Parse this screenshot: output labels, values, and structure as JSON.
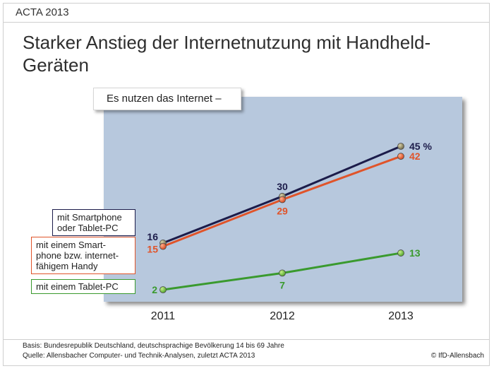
{
  "header": {
    "label": "ACTA 2013"
  },
  "footer": {
    "basis": "Basis: Bundesrepublik Deutschland, deutschsprachige Bevölkerung 14 bis 69 Jahre",
    "source": "Quelle: Allensbacher Computer- und Technik-Analysen, zuletzt ACTA 2013",
    "copyright": "© IfD-Allensbach"
  },
  "chart_data": {
    "type": "line",
    "title": "Starker Anstieg der Internetnutzung mit Handheld-Geräten",
    "subtitle": "Es nutzen das Internet –",
    "x": [
      "2011",
      "2012",
      "2013"
    ],
    "unit": "%",
    "ylim": [
      0,
      50
    ],
    "grid": false,
    "background_color": "#b7c8dd",
    "series": [
      {
        "name": "mit Smartphone oder Tablet-PC",
        "values": [
          16,
          30,
          45
        ],
        "color": "#1c1c4a"
      },
      {
        "name": "mit einem Smart-phone bzw. internet-fähigem Handy",
        "values": [
          15,
          29,
          42
        ],
        "color": "#e0542a"
      },
      {
        "name": "mit einem Tablet-PC",
        "values": [
          2,
          7,
          13
        ],
        "color": "#3a9a2e"
      }
    ],
    "legend": [
      {
        "lines": [
          "mit Smartphone",
          "oder Tablet-PC"
        ],
        "color": "#1c1c4a"
      },
      {
        "lines": [
          "mit einem Smart-",
          "phone bzw. internet-",
          "fähigem Handy"
        ],
        "color": "#e0542a"
      },
      {
        "lines": [
          "mit einem Tablet-PC"
        ],
        "color": "#3a9a2e"
      }
    ],
    "data_labels": [
      [
        "16",
        "30",
        "45 %"
      ],
      [
        "15",
        "29",
        "42"
      ],
      [
        "2",
        "7",
        "13"
      ]
    ]
  }
}
